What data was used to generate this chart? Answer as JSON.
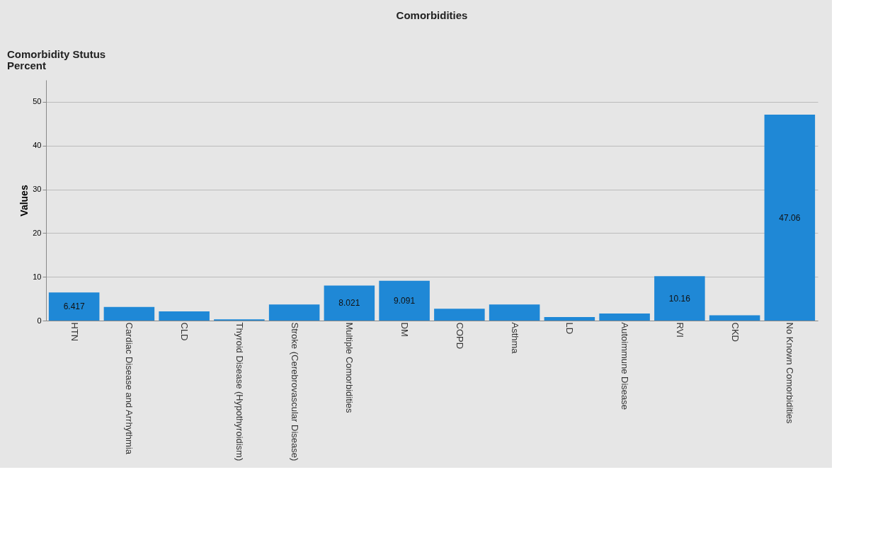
{
  "chart_data": {
    "type": "bar",
    "title": "Comorbidities",
    "ylabel": "Values",
    "annotations": [
      "Comorbidity Stutus\nPercent"
    ],
    "categories": [
      "HTN",
      "Cardiac Disease and Arrhythmia",
      "CLD",
      "Thyroid Disease (Hypothyroidism)",
      "Stroke (Cerebrovascular Disease)",
      "Multiple Comorbidities",
      "DM",
      "COPD",
      "Asthma",
      "LD",
      "Autoimmune Disease",
      "RVI",
      "CKD",
      "No Known Comorbidities"
    ],
    "values": [
      6.417,
      3.1,
      2.1,
      0.3,
      3.7,
      8.021,
      9.091,
      2.7,
      3.7,
      0.8,
      1.6,
      10.16,
      1.2,
      47.06
    ],
    "value_labels": [
      "6.417",
      null,
      null,
      null,
      null,
      "8.021",
      "9.091",
      null,
      null,
      null,
      null,
      "10.16",
      null,
      "47.06"
    ],
    "color": "#1f88d6",
    "ylim": [
      0,
      55
    ],
    "yticks": [
      0,
      10,
      20,
      30,
      40,
      50
    ],
    "grid": "y"
  }
}
